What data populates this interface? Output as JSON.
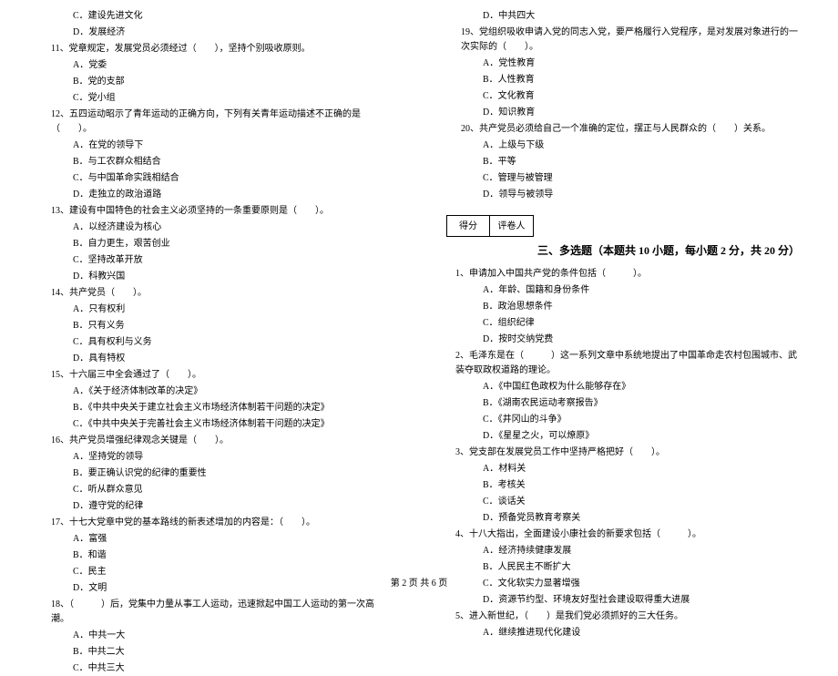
{
  "col1": {
    "q10": {
      "optC": "C．建设先进文化",
      "optD": "D．发展经济"
    },
    "q11": {
      "stem": "11、党章规定，发展党员必须经过（　　），坚持个别吸收原则。",
      "optA": "A．党委",
      "optB": "B．党的支部",
      "optC": "C．党小组"
    },
    "q12": {
      "stem": "12、五四运动昭示了青年运动的正确方向，下列有关青年运动描述不正确的是（　　）。",
      "optA": "A．在党的领导下",
      "optB": "B．与工农群众相结合",
      "optC": "C．与中国革命实践相结合",
      "optD": "D．走独立的政治道路"
    },
    "q13": {
      "stem": "13、建设有中国特色的社会主义必须坚持的一条重要原则是（　　）。",
      "optA": "A．以经济建设为核心",
      "optB": "B．自力更生，艰苦创业",
      "optC": "C．坚持改革开放",
      "optD": "D．科教兴国"
    },
    "q14": {
      "stem": "14、共产党员（　　）。",
      "optA": "A．只有权利",
      "optB": "B．只有义务",
      "optC": "C．具有权利与义务",
      "optD": "D．具有特权"
    },
    "q15": {
      "stem": "15、十六届三中全会通过了（　　）。",
      "optA": "A．《关于经济体制改革的决定》",
      "optB": "B．《中共中央关于建立社会主义市场经济体制若干问题的决定》",
      "optC": "C．《中共中央关于完善社会主义市场经济体制若干问题的决定》"
    },
    "q16": {
      "stem": "16、共产党员增强纪律观念关键是（　　）。",
      "optA": "A．坚持党的领导",
      "optB": "B．要正确认识党的纪律的重要性",
      "optC": "C．听从群众意见",
      "optD": "D．遵守党的纪律"
    },
    "q17": {
      "stem": "17、十七大党章中党的基本路线的新表述增加的内容是：（　　）。",
      "optA": "A．富强",
      "optB": "B．和谐",
      "optC": "C．民主",
      "optD": "D．文明"
    },
    "q18": {
      "stem": "18、（　　　）后，党集中力量从事工人运动，迅速掀起中国工人运动的第一次高潮。",
      "optA": "A．中共一大",
      "optB": "B．中共二大",
      "optC": "C．中共三大"
    }
  },
  "col2": {
    "q18": {
      "optD": "D．中共四大"
    },
    "q19": {
      "stem": "19、党组织吸收申请入党的同志入党，要严格履行入党程序，是对发展对象进行的一次实际的（　　）。",
      "optA": "A．党性教育",
      "optB": "B．人性教育",
      "optC": "C．文化教育",
      "optD": "D．知识教育"
    },
    "q20": {
      "stem": "20、共产党员必须给自己一个准确的定位，摆正与人民群众的（　　）关系。",
      "optA": "A．上级与下级",
      "optB": "B．平等",
      "optC": "C．管理与被管理",
      "optD": "D．领导与被领导"
    },
    "score": {
      "label1": "得分",
      "label2": "评卷人"
    },
    "sectionTitle": "三、多选题（本题共 10 小题，每小题 2 分，共 20 分）",
    "m1": {
      "stem": "1、申请加入中国共产党的条件包括（　　　）。",
      "optA": "A．年龄、国籍和身份条件",
      "optB": "B．政治思想条件",
      "optC": "C．组织纪律",
      "optD": "D．按时交纳党费"
    },
    "m2": {
      "stem": "2、毛泽东是在（　　　）这一系列文章中系统地提出了中国革命走农村包围城市、武装夺取政权道路的理论。",
      "optA": "A．《中国红色政权为什么能够存在》",
      "optB": "B．《湖南农民运动考察报告》",
      "optC": "C．《井冈山的斗争》",
      "optD": "D．《星星之火，可以燎原》"
    },
    "m3": {
      "stem": "3、党支部在发展党员工作中坚持严格把好（　　）。",
      "optA": "A．材料关",
      "optB": "B．考核关",
      "optC": "C．谈话关",
      "optD": "D．预备党员教育考察关"
    },
    "m4": {
      "stem": "4、十八大指出，全面建设小康社会的新要求包括（　　　）。",
      "optA": "A．经济持续健康发展",
      "optB": "B．人民民主不断扩大",
      "optC": "C．文化软实力显著增强",
      "optD": "D．资源节约型、环境友好型社会建设取得重大进展"
    },
    "m5": {
      "stem": "5、进入新世纪，（　　）是我们党必须抓好的三大任务。",
      "optA": "A．继续推进现代化建设"
    }
  },
  "footer": "第 2 页 共 6 页"
}
